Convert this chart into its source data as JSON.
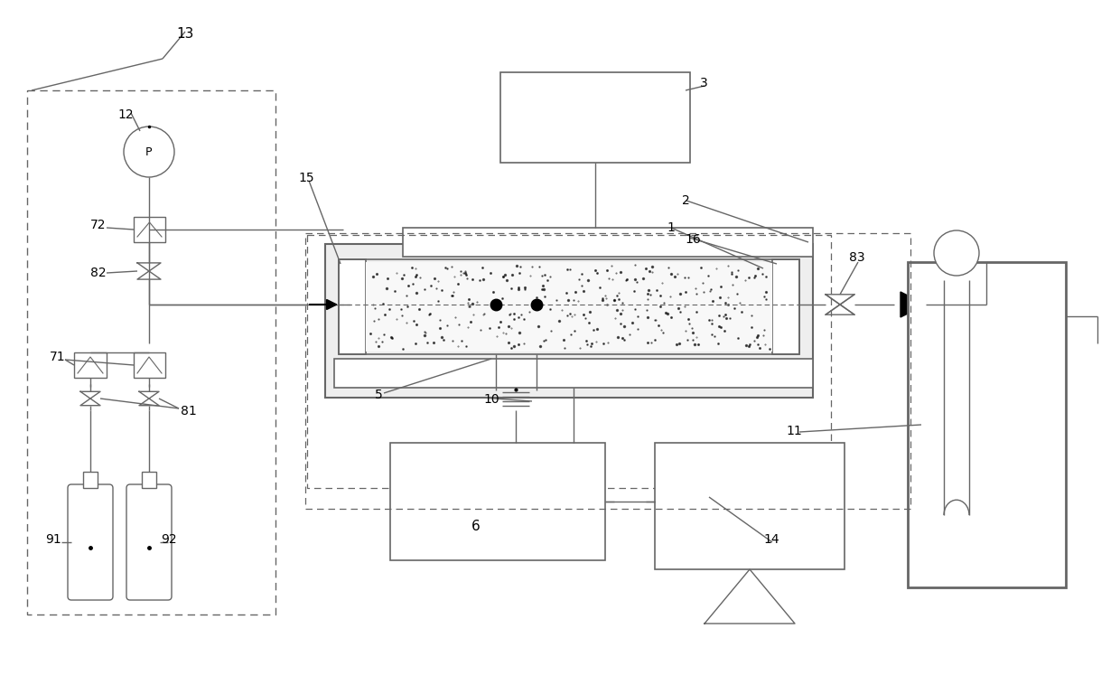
{
  "bg_color": "#ffffff",
  "line_color": "#666666",
  "figsize": [
    12.4,
    7.58
  ],
  "dpi": 100
}
